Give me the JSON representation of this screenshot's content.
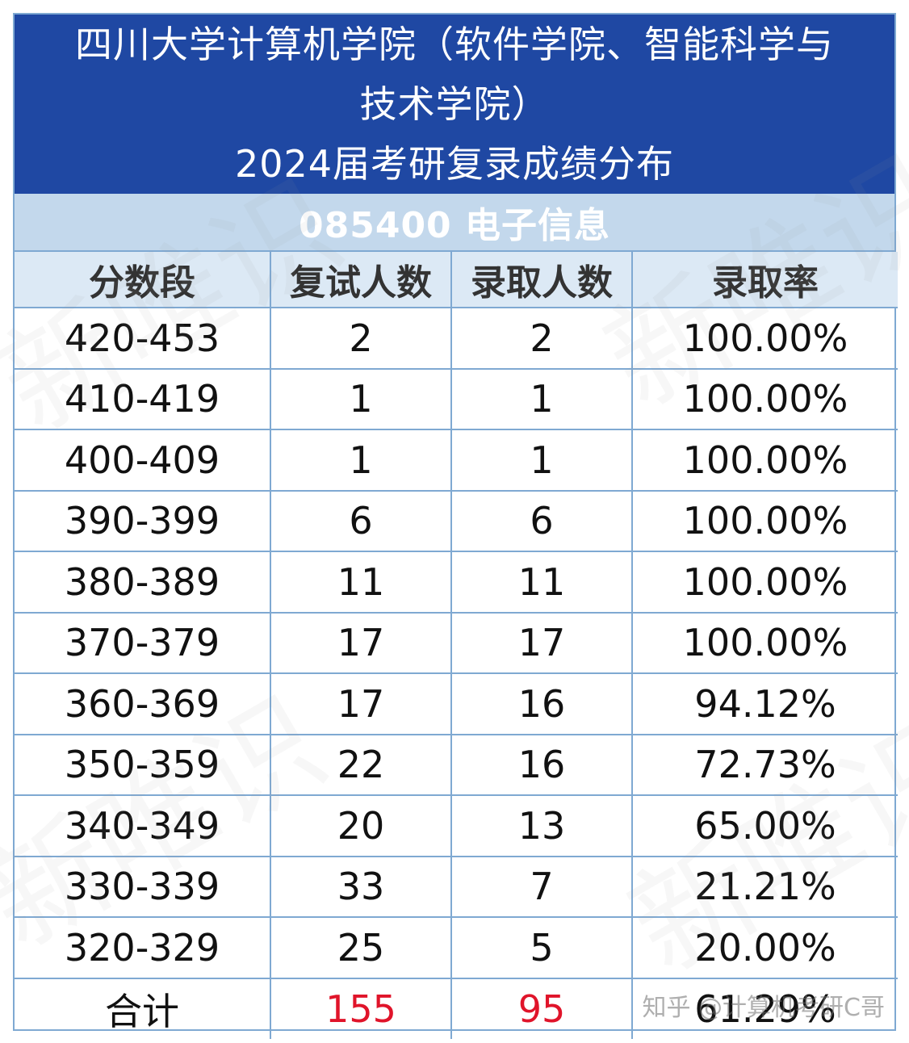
{
  "title": {
    "line1": "四川大学计算机学院（软件学院、智能科学与",
    "line2": "技术学院）",
    "line3": "2024届考研复录成绩分布"
  },
  "subtitle": "085400 电子信息",
  "table": {
    "headers": [
      "分数段",
      "复试人数",
      "录取人数",
      "录取率"
    ],
    "rows": [
      [
        "420-453",
        "2",
        "2",
        "100.00%"
      ],
      [
        "410-419",
        "1",
        "1",
        "100.00%"
      ],
      [
        "400-409",
        "1",
        "1",
        "100.00%"
      ],
      [
        "390-399",
        "6",
        "6",
        "100.00%"
      ],
      [
        "380-389",
        "11",
        "11",
        "100.00%"
      ],
      [
        "370-379",
        "17",
        "17",
        "100.00%"
      ],
      [
        "360-369",
        "17",
        "16",
        "94.12%"
      ],
      [
        "350-359",
        "22",
        "16",
        "72.73%"
      ],
      [
        "340-349",
        "20",
        "13",
        "65.00%"
      ],
      [
        "330-339",
        "33",
        "7",
        "21.21%"
      ],
      [
        "320-329",
        "25",
        "5",
        "20.00%"
      ]
    ],
    "total": [
      "合计",
      "155",
      "95",
      "61.29%"
    ]
  },
  "watermark": "知乎 @计算机考研C哥",
  "colors": {
    "header_blue": "#1f48a3",
    "light_blue": "#c3d8ec",
    "border": "#7fa9d2",
    "total_red": "#e0142a"
  }
}
